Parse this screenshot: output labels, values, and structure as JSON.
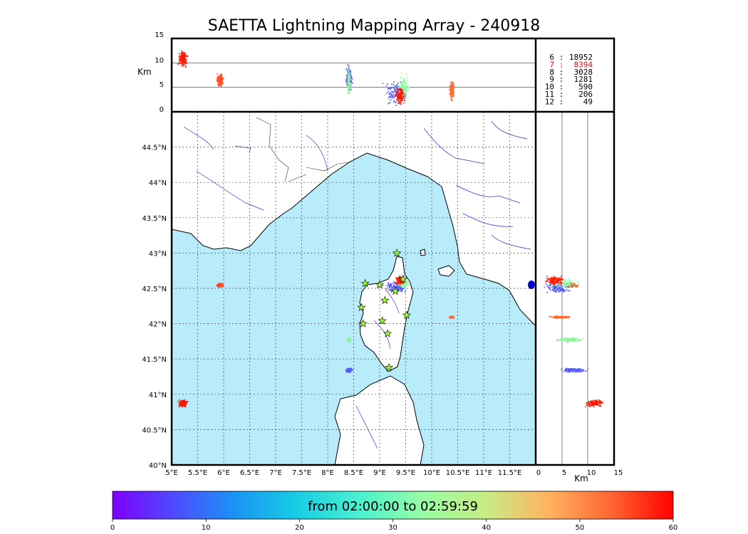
{
  "title": "SAETTA Lightning Mapping Array - 240918",
  "colors": {
    "sea": "#b8ecfa",
    "land": "#ffffff",
    "coast": "#000000",
    "river": "#3333dd",
    "grid": "#444444",
    "star_fill": "#99ff33",
    "station": "#0000cc"
  },
  "altitude_panel": {
    "ylabel": "Km",
    "ticks": [
      "0",
      "5",
      "10",
      "15"
    ]
  },
  "side_panel": {
    "xlabel": "Km",
    "ticks": [
      "0",
      "5",
      "10",
      "15"
    ]
  },
  "station_counts": [
    {
      "station": "6",
      "count": "18952",
      "color": "#000000"
    },
    {
      "station": "7",
      "count": "8394",
      "color": "#ff0000"
    },
    {
      "station": "8",
      "count": "3028",
      "color": "#000000"
    },
    {
      "station": "9",
      "count": "1281",
      "color": "#000000"
    },
    {
      "station": "10",
      "count": "590",
      "color": "#000000"
    },
    {
      "station": "11",
      "count": "206",
      "color": "#000000"
    },
    {
      "station": "12",
      "count": "49",
      "color": "#000000"
    }
  ],
  "map": {
    "lon_ticks": [
      "5°E",
      "5.5°E",
      "6°E",
      "6.5°E",
      "7°E",
      "7.5°E",
      "8°E",
      "8.5°E",
      "9°E",
      "9.5°E",
      "10°E",
      "10.5°E",
      "11°E",
      "11.5°E"
    ],
    "lat_ticks": [
      "40°N",
      "40.5°N",
      "41°N",
      "41.5°N",
      "42°N",
      "42.5°N",
      "43°N",
      "43.5°N",
      "44°N",
      "44.5°N"
    ],
    "lon_range": [
      5,
      12
    ],
    "lat_range": [
      40,
      45
    ],
    "stations": [
      {
        "lon": 9.33,
        "lat": 43.0
      },
      {
        "lon": 9.45,
        "lat": 42.63
      },
      {
        "lon": 8.72,
        "lat": 42.57
      },
      {
        "lon": 9.0,
        "lat": 42.55
      },
      {
        "lon": 9.3,
        "lat": 42.46
      },
      {
        "lon": 9.1,
        "lat": 42.33
      },
      {
        "lon": 8.65,
        "lat": 42.23
      },
      {
        "lon": 9.52,
        "lat": 42.12
      },
      {
        "lon": 9.05,
        "lat": 42.04
      },
      {
        "lon": 8.68,
        "lat": 42.0
      },
      {
        "lon": 9.15,
        "lat": 41.86
      },
      {
        "lon": 9.18,
        "lat": 41.38
      }
    ]
  },
  "colorbar": {
    "label": "from 02:00:00 to 02:59:59",
    "ticks": [
      "0",
      "10",
      "20",
      "30",
      "40",
      "50",
      "60"
    ],
    "stops": [
      "#7f00ff",
      "#4c4cff",
      "#1996f3",
      "#19cfe4",
      "#4cf2ce",
      "#99fda4",
      "#c8ec84",
      "#ffb360",
      "#ff6633",
      "#ff0000"
    ]
  },
  "lightning_clusters": [
    {
      "lon": 5.2,
      "lat": 40.88,
      "alt": 11,
      "color": "#ff1500",
      "lon_spread": 0.06,
      "lat_spread": 0.03,
      "alt_spread": 1.0
    },
    {
      "lon": 5.92,
      "lat": 42.55,
      "alt": 6.5,
      "color": "#ff4a20",
      "lon_spread": 0.04,
      "lat_spread": 0.02,
      "alt_spread": 0.8
    },
    {
      "lon": 8.4,
      "lat": 41.35,
      "alt": 7,
      "color": "#5858ff",
      "lon_spread": 0.04,
      "lat_spread": 0.02,
      "alt_spread": 1.5
    },
    {
      "lon": 8.4,
      "lat": 41.78,
      "alt": 6,
      "color": "#8ff39a",
      "lon_spread": 0.02,
      "lat_spread": 0.02,
      "alt_spread": 1.5
    },
    {
      "lon": 9.3,
      "lat": 42.52,
      "alt": 4,
      "color": "#4c50ff",
      "lon_spread": 0.15,
      "lat_spread": 0.05,
      "alt_spread": 1.5
    },
    {
      "lon": 9.45,
      "lat": 42.58,
      "alt": 5,
      "color": "#94fba3",
      "lon_spread": 0.07,
      "lat_spread": 0.04,
      "alt_spread": 2.0
    },
    {
      "lon": 9.38,
      "lat": 42.62,
      "alt": 3.5,
      "color": "#ff1a00",
      "lon_spread": 0.05,
      "lat_spread": 0.04,
      "alt_spread": 1.2
    },
    {
      "lon": 10.38,
      "lat": 42.1,
      "alt": 4.5,
      "color": "#ff6a30",
      "lon_spread": 0.03,
      "lat_spread": 0.01,
      "alt_spread": 1.2
    }
  ]
}
